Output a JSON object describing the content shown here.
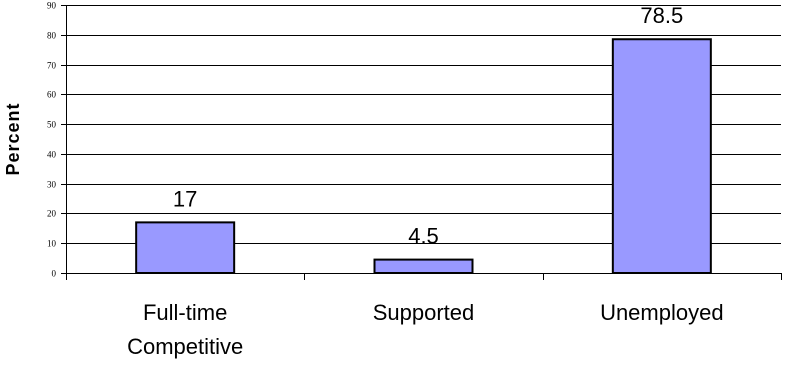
{
  "chart_data": {
    "type": "bar",
    "categories": [
      [
        "Full-time",
        "Competitive"
      ],
      [
        "Supported"
      ],
      [
        "Unemployed"
      ]
    ],
    "values": [
      17,
      4.5,
      78.5
    ],
    "data_labels": [
      "17",
      "4.5",
      "78.5"
    ],
    "ylabel": "Percent",
    "ylim": [
      0,
      90
    ],
    "yticks": [
      "0",
      "10",
      "20",
      "30",
      "40",
      "50",
      "60",
      "70",
      "80",
      "90"
    ],
    "grid": true,
    "colors": {
      "bar_fill": "#9999ff",
      "bar_stroke": "#000000",
      "grid": "#000000"
    }
  }
}
